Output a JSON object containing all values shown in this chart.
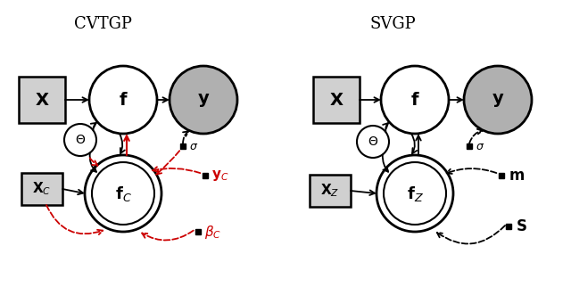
{
  "title_left": "CVTGP",
  "title_right": "SVGP",
  "bg_color": "#ffffff",
  "red_color": "#cc0000",
  "gray_node": "#b0b0b0",
  "lightgray_box": "#d0d0d0"
}
